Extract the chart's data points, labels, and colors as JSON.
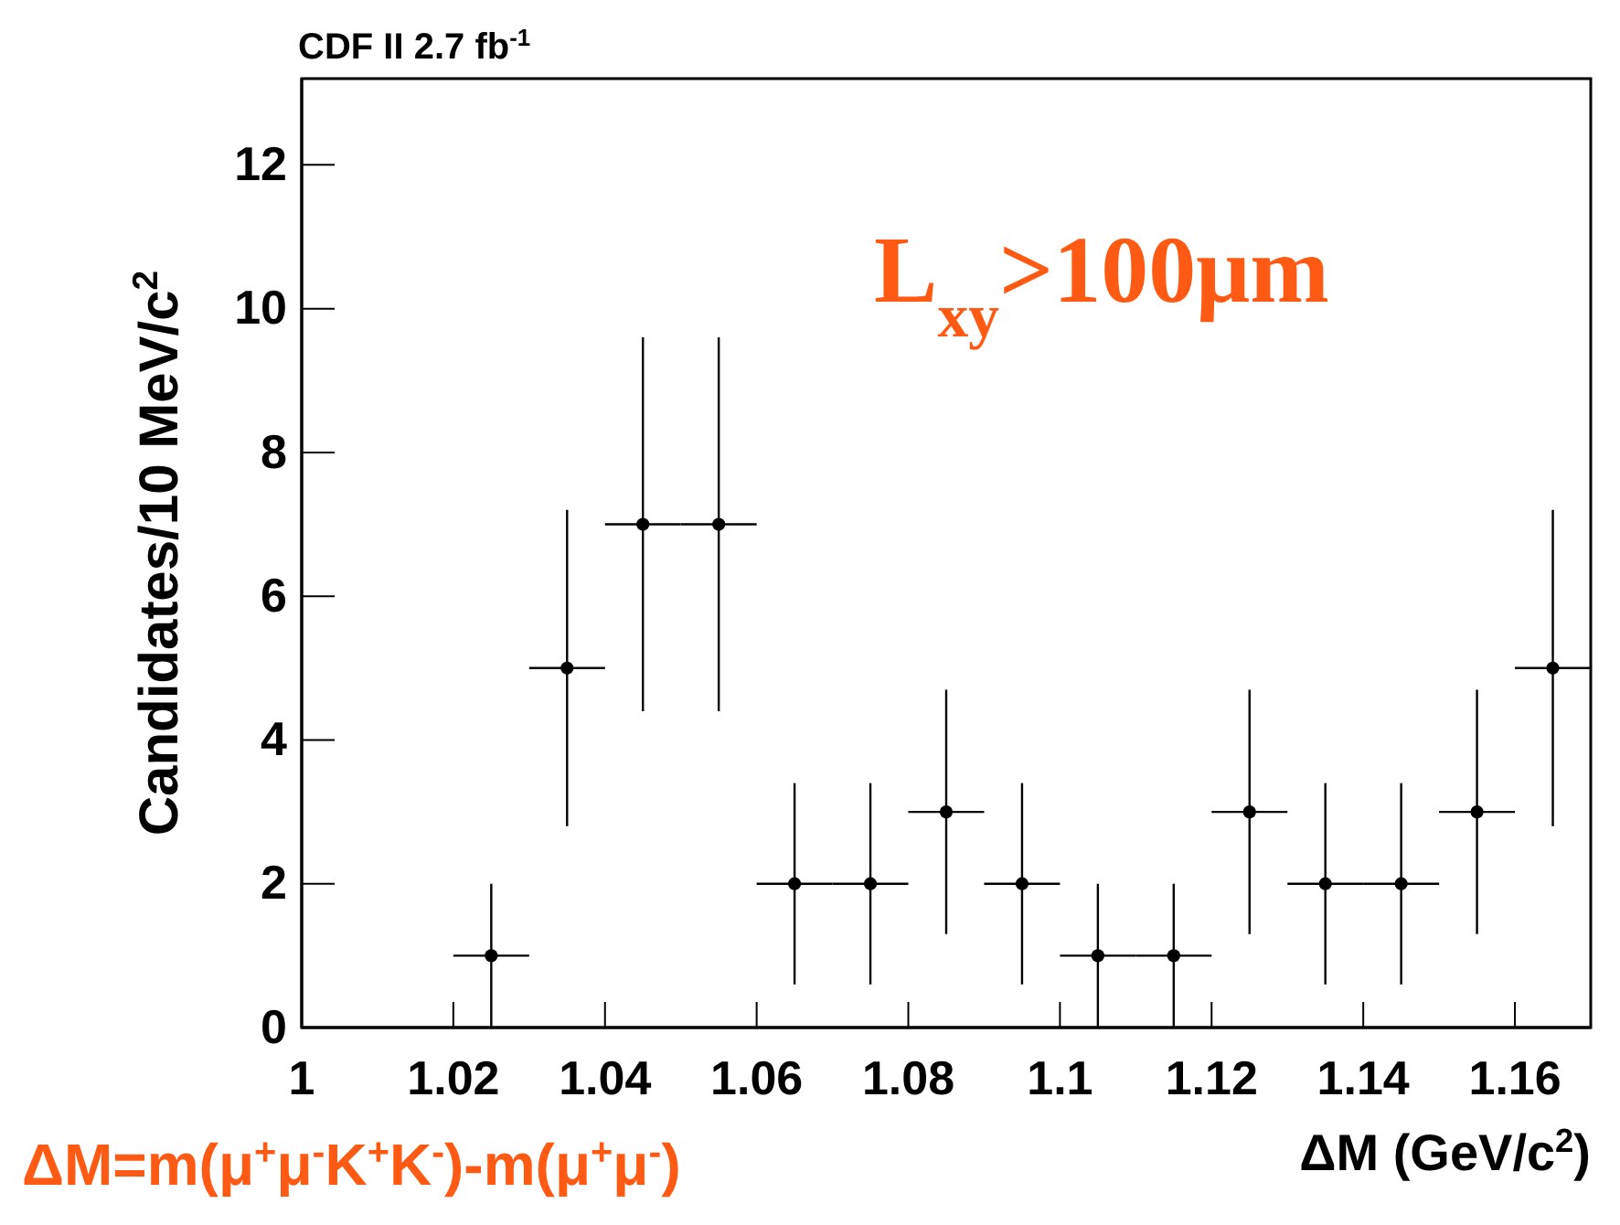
{
  "chart_data": {
    "type": "scatter",
    "title": "CDF II 2.7 fb$^{-1}$",
    "xlabel": "ΔM  (GeV/c$^{2}$)",
    "ylabel": "Candidates/10 MeV/c$^{2}$",
    "x": [
      1.025,
      1.035,
      1.045,
      1.055,
      1.065,
      1.075,
      1.085,
      1.095,
      1.105,
      1.115,
      1.125,
      1.135,
      1.145,
      1.155,
      1.165
    ],
    "values": [
      1,
      5,
      7,
      7,
      2,
      2,
      3,
      2,
      1,
      1,
      3,
      2,
      2,
      3,
      5
    ],
    "errors": [
      1,
      2.2,
      2.6,
      2.6,
      1.4,
      1.4,
      1.7,
      1.4,
      1,
      1,
      1.7,
      1.4,
      1.4,
      1.7,
      2.2
    ],
    "xerrors": [
      0.005,
      0.005,
      0.005,
      0.005,
      0.005,
      0.005,
      0.005,
      0.005,
      0.005,
      0.005,
      0.005,
      0.005,
      0.005,
      0.005,
      0.005
    ],
    "color": "#000000",
    "marker": "circle",
    "xlim": [
      1,
      1.17
    ],
    "ylim": [
      0,
      13.2
    ],
    "xticks": [
      1,
      1.02,
      1.04,
      1.06,
      1.08,
      1.1,
      1.12,
      1.14,
      1.16
    ],
    "yticks": [
      0,
      2,
      4,
      6,
      8,
      10,
      12
    ],
    "annotations": [
      "L$_{xy}$>100μm",
      "ΔM=m(μ$^{+}$μ$^{-}$K$^{+}$K$^{-}$)-m(μ$^{+}$μ$^{-}$)"
    ]
  }
}
